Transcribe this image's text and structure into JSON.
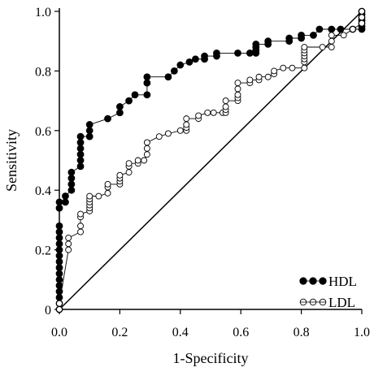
{
  "chart_data": {
    "type": "line",
    "title": "",
    "xlabel": "1-Specificity",
    "ylabel": "Sensitivity",
    "xlim": [
      0,
      1
    ],
    "ylim": [
      0,
      1
    ],
    "x_ticks": [
      0.0,
      0.2,
      0.4,
      0.6,
      0.8,
      1.0
    ],
    "x_tick_labels": [
      "0.0",
      "0.2",
      "0.4",
      "0.6",
      "0.8",
      "1.0"
    ],
    "y_ticks": [
      0,
      0.2,
      0.4,
      0.6,
      0.8,
      1.0
    ],
    "y_tick_labels": [
      "0",
      "0.2",
      "0.4",
      "0.6",
      "0.8",
      "1.0"
    ],
    "grid": false,
    "legend_position": "bottom-right",
    "reference_line": {
      "from": [
        0,
        0
      ],
      "to": [
        1,
        1
      ]
    },
    "series": [
      {
        "name": "HDL",
        "marker": "filled-circle",
        "color": "#000000",
        "points": [
          [
            0.0,
            0.0
          ],
          [
            0.0,
            0.02
          ],
          [
            0.0,
            0.04
          ],
          [
            0.0,
            0.06
          ],
          [
            0.0,
            0.08
          ],
          [
            0.0,
            0.1
          ],
          [
            0.0,
            0.12
          ],
          [
            0.0,
            0.14
          ],
          [
            0.0,
            0.16
          ],
          [
            0.0,
            0.18
          ],
          [
            0.0,
            0.2
          ],
          [
            0.0,
            0.22
          ],
          [
            0.0,
            0.24
          ],
          [
            0.0,
            0.26
          ],
          [
            0.0,
            0.28
          ],
          [
            0.0,
            0.34
          ],
          [
            0.0,
            0.36
          ],
          [
            0.02,
            0.36
          ],
          [
            0.02,
            0.38
          ],
          [
            0.04,
            0.4
          ],
          [
            0.04,
            0.42
          ],
          [
            0.04,
            0.44
          ],
          [
            0.04,
            0.46
          ],
          [
            0.07,
            0.48
          ],
          [
            0.07,
            0.5
          ],
          [
            0.07,
            0.52
          ],
          [
            0.07,
            0.54
          ],
          [
            0.07,
            0.56
          ],
          [
            0.07,
            0.58
          ],
          [
            0.1,
            0.58
          ],
          [
            0.1,
            0.6
          ],
          [
            0.1,
            0.62
          ],
          [
            0.16,
            0.64
          ],
          [
            0.2,
            0.66
          ],
          [
            0.2,
            0.68
          ],
          [
            0.23,
            0.7
          ],
          [
            0.25,
            0.72
          ],
          [
            0.29,
            0.72
          ],
          [
            0.29,
            0.76
          ],
          [
            0.29,
            0.78
          ],
          [
            0.36,
            0.78
          ],
          [
            0.38,
            0.8
          ],
          [
            0.4,
            0.82
          ],
          [
            0.43,
            0.83
          ],
          [
            0.45,
            0.84
          ],
          [
            0.48,
            0.84
          ],
          [
            0.48,
            0.85
          ],
          [
            0.52,
            0.85
          ],
          [
            0.52,
            0.86
          ],
          [
            0.59,
            0.86
          ],
          [
            0.63,
            0.86
          ],
          [
            0.65,
            0.86
          ],
          [
            0.65,
            0.87
          ],
          [
            0.65,
            0.88
          ],
          [
            0.65,
            0.89
          ],
          [
            0.69,
            0.89
          ],
          [
            0.69,
            0.9
          ],
          [
            0.76,
            0.9
          ],
          [
            0.76,
            0.91
          ],
          [
            0.8,
            0.91
          ],
          [
            0.8,
            0.92
          ],
          [
            0.84,
            0.92
          ],
          [
            0.86,
            0.94
          ],
          [
            0.9,
            0.94
          ],
          [
            0.93,
            0.94
          ],
          [
            0.97,
            0.94
          ],
          [
            1.0,
            0.94
          ],
          [
            1.0,
            0.95
          ],
          [
            1.0,
            0.96
          ],
          [
            1.0,
            0.97
          ],
          [
            1.0,
            0.98
          ],
          [
            1.0,
            0.99
          ],
          [
            1.0,
            1.0
          ]
        ]
      },
      {
        "name": "LDL",
        "marker": "open-circle",
        "color": "#000000",
        "points": [
          [
            0.0,
            0.0
          ],
          [
            0.0,
            0.02
          ],
          [
            0.03,
            0.2
          ],
          [
            0.03,
            0.22
          ],
          [
            0.03,
            0.24
          ],
          [
            0.07,
            0.26
          ],
          [
            0.07,
            0.28
          ],
          [
            0.07,
            0.31
          ],
          [
            0.07,
            0.32
          ],
          [
            0.1,
            0.33
          ],
          [
            0.1,
            0.34
          ],
          [
            0.1,
            0.35
          ],
          [
            0.1,
            0.36
          ],
          [
            0.1,
            0.37
          ],
          [
            0.1,
            0.38
          ],
          [
            0.13,
            0.38
          ],
          [
            0.16,
            0.39
          ],
          [
            0.16,
            0.41
          ],
          [
            0.16,
            0.42
          ],
          [
            0.2,
            0.42
          ],
          [
            0.2,
            0.43
          ],
          [
            0.2,
            0.44
          ],
          [
            0.2,
            0.45
          ],
          [
            0.23,
            0.46
          ],
          [
            0.23,
            0.48
          ],
          [
            0.23,
            0.49
          ],
          [
            0.26,
            0.49
          ],
          [
            0.26,
            0.5
          ],
          [
            0.28,
            0.5
          ],
          [
            0.29,
            0.52
          ],
          [
            0.29,
            0.54
          ],
          [
            0.29,
            0.56
          ],
          [
            0.33,
            0.58
          ],
          [
            0.36,
            0.59
          ],
          [
            0.4,
            0.6
          ],
          [
            0.42,
            0.6
          ],
          [
            0.42,
            0.61
          ],
          [
            0.42,
            0.62
          ],
          [
            0.42,
            0.64
          ],
          [
            0.46,
            0.64
          ],
          [
            0.46,
            0.65
          ],
          [
            0.49,
            0.66
          ],
          [
            0.51,
            0.66
          ],
          [
            0.54,
            0.66
          ],
          [
            0.55,
            0.66
          ],
          [
            0.55,
            0.67
          ],
          [
            0.55,
            0.68
          ],
          [
            0.55,
            0.7
          ],
          [
            0.59,
            0.7
          ],
          [
            0.59,
            0.71
          ],
          [
            0.59,
            0.72
          ],
          [
            0.59,
            0.74
          ],
          [
            0.59,
            0.76
          ],
          [
            0.63,
            0.76
          ],
          [
            0.63,
            0.77
          ],
          [
            0.66,
            0.77
          ],
          [
            0.66,
            0.78
          ],
          [
            0.69,
            0.78
          ],
          [
            0.71,
            0.79
          ],
          [
            0.71,
            0.8
          ],
          [
            0.74,
            0.81
          ],
          [
            0.77,
            0.81
          ],
          [
            0.81,
            0.81
          ],
          [
            0.81,
            0.83
          ],
          [
            0.81,
            0.84
          ],
          [
            0.81,
            0.85
          ],
          [
            0.81,
            0.86
          ],
          [
            0.81,
            0.87
          ],
          [
            0.81,
            0.88
          ],
          [
            0.87,
            0.88
          ],
          [
            0.9,
            0.88
          ],
          [
            0.9,
            0.9
          ],
          [
            0.9,
            0.92
          ],
          [
            0.94,
            0.92
          ],
          [
            0.97,
            0.94
          ],
          [
            1.0,
            0.96
          ],
          [
            1.0,
            0.98
          ],
          [
            1.0,
            1.0
          ]
        ]
      }
    ]
  }
}
